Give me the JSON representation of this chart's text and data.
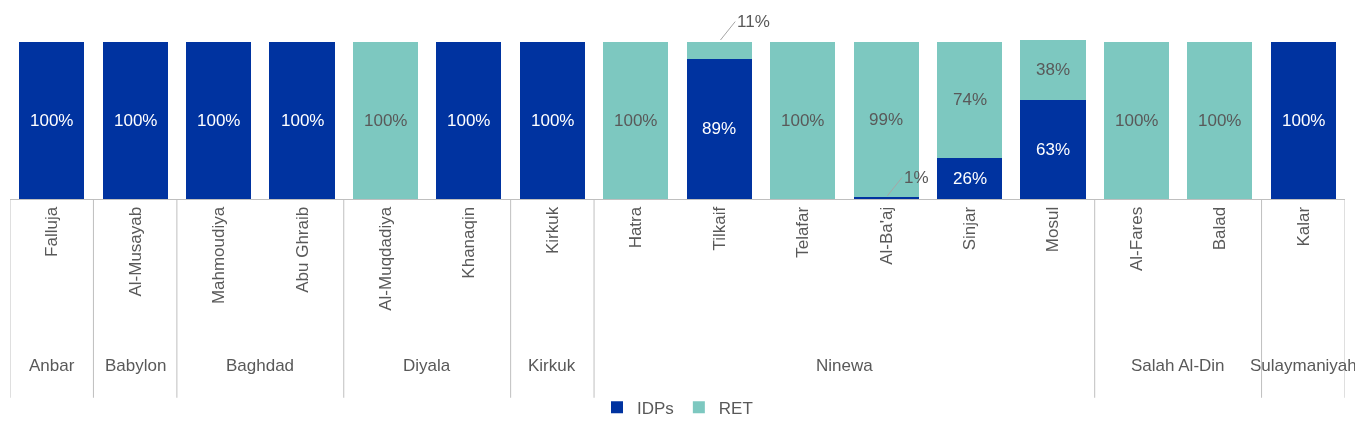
{
  "chart_data": {
    "type": "bar",
    "stacked": true,
    "legend": "bottom",
    "categories": [
      "Falluja",
      "Al-Musayab",
      "Mahmoudiya",
      "Abu Ghraib",
      "Al-Muqdadiya",
      "Khanaqin",
      "Kirkuk",
      "Hatra",
      "Tilkaif",
      "Telafar",
      "Al-Ba'aj",
      "Sinjar",
      "Mosul",
      "Al-Fares",
      "Balad",
      "Kalar"
    ],
    "series": [
      {
        "name": "IDPs",
        "color": "#0033a0",
        "values": [
          100,
          100,
          100,
          100,
          0,
          100,
          100,
          0,
          89,
          0,
          1,
          26,
          63,
          0,
          0,
          100
        ],
        "value_labels": [
          "100%",
          "100%",
          "100%",
          "100%",
          null,
          "100%",
          "100%",
          null,
          "89%",
          null,
          "1%",
          "26%",
          "63%",
          null,
          null,
          "100%"
        ]
      },
      {
        "name": "RET",
        "color": "#7dc8c0",
        "values": [
          0,
          0,
          0,
          0,
          100,
          0,
          0,
          100,
          11,
          100,
          99,
          74,
          38,
          100,
          100,
          0
        ],
        "value_labels": [
          null,
          null,
          null,
          null,
          "100%",
          null,
          null,
          "100%",
          "11%",
          "100%",
          "99%",
          "74%",
          "38%",
          "100%",
          "100%",
          null
        ]
      }
    ],
    "annotations": [
      "Anbar",
      "Babylon",
      "Baghdad",
      "Diyala",
      "Kirkuk",
      "Ninewa",
      "Salah Al-Din",
      "Sulaymaniyah"
    ]
  }
}
